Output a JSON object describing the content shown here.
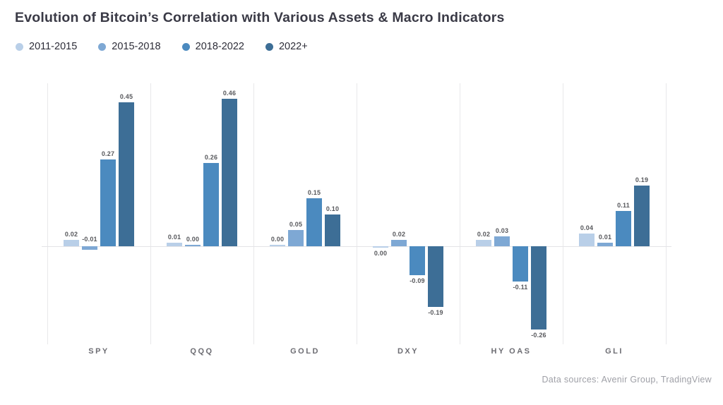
{
  "title": "Evolution of Bitcoin’s Correlation with Various Assets & Macro Indicators",
  "footer": "Data sources: Avenir Group, TradingView",
  "legend": [
    {
      "label": "2011-2015",
      "color": "#b9cfe8"
    },
    {
      "label": "2015-2018",
      "color": "#7ea8d4"
    },
    {
      "label": "2018-2022",
      "color": "#4b8abf"
    },
    {
      "label": "2022+",
      "color": "#3d6e96"
    }
  ],
  "chart_data": {
    "type": "bar",
    "title": "Evolution of Bitcoin’s Correlation with Various Assets & Macro Indicators",
    "categories": [
      "SPY",
      "QQQ",
      "GOLD",
      "DXY",
      "HY OAS",
      "GLI"
    ],
    "series": [
      {
        "name": "2011-2015",
        "color": "#b9cfe8",
        "values": [
          0.02,
          0.01,
          0.0,
          0.0,
          0.02,
          0.04
        ]
      },
      {
        "name": "2015-2018",
        "color": "#7ea8d4",
        "values": [
          -0.01,
          0.0,
          0.05,
          0.02,
          0.03,
          0.01
        ]
      },
      {
        "name": "2018-2022",
        "color": "#4b8abf",
        "values": [
          0.27,
          0.26,
          0.15,
          -0.09,
          -0.11,
          0.11
        ]
      },
      {
        "name": "2022+",
        "color": "#3d6e96",
        "values": [
          0.45,
          0.46,
          0.1,
          -0.19,
          -0.26,
          0.19
        ]
      }
    ],
    "label_placements": [
      [
        "above",
        "above",
        "above",
        "below_zero",
        "above",
        "above"
      ],
      [
        "above_zero",
        "above",
        "above",
        "above",
        "above",
        "above"
      ],
      [
        "above",
        "above",
        "above",
        "below",
        "below",
        "above"
      ],
      [
        "above",
        "above",
        "above",
        "below",
        "below",
        "above"
      ]
    ],
    "value_label_format": "0.00",
    "xlabel": "",
    "ylabel": "",
    "ylim": [
      -0.3,
      0.5
    ],
    "grid": "vertical-separators-only",
    "legend_position": "top-left"
  }
}
